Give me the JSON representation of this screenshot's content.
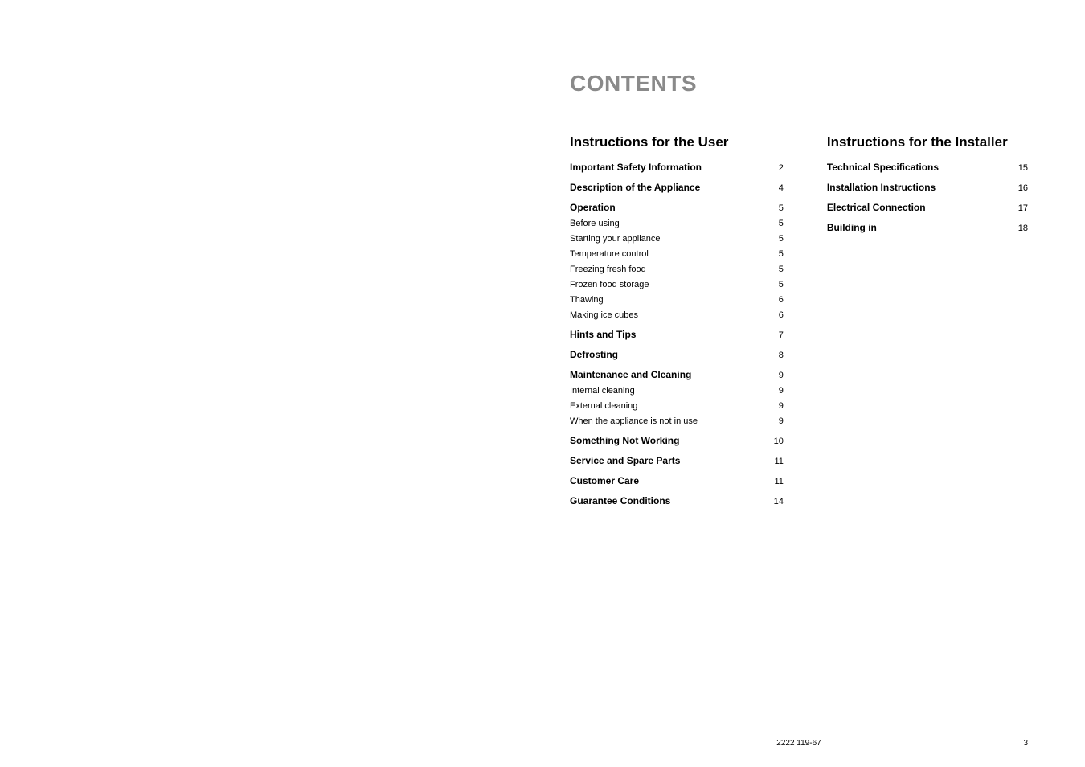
{
  "title": "CONTENTS",
  "user_section": {
    "heading": "Instructions for the User",
    "items": [
      {
        "label": "Important Safety Information",
        "page": "2",
        "bold": true,
        "gap": "large"
      },
      {
        "label": "Description of the Appliance",
        "page": "4",
        "bold": true,
        "gap": "large"
      },
      {
        "label": "Operation",
        "page": "5",
        "bold": true,
        "gap": "small"
      },
      {
        "label": "Before using",
        "page": "5",
        "bold": false,
        "gap": "small"
      },
      {
        "label": "Starting your appliance",
        "page": "5",
        "bold": false,
        "gap": "small"
      },
      {
        "label": "Temperature control",
        "page": "5",
        "bold": false,
        "gap": "small"
      },
      {
        "label": "Freezing fresh food",
        "page": "5",
        "bold": false,
        "gap": "small"
      },
      {
        "label": "Frozen food storage",
        "page": "5",
        "bold": false,
        "gap": "small"
      },
      {
        "label": "Thawing",
        "page": "6",
        "bold": false,
        "gap": "small"
      },
      {
        "label": "Making ice cubes",
        "page": "6",
        "bold": false,
        "gap": "large"
      },
      {
        "label": "Hints and Tips",
        "page": "7",
        "bold": true,
        "gap": "large"
      },
      {
        "label": "Defrosting",
        "page": "8",
        "bold": true,
        "gap": "large"
      },
      {
        "label": "Maintenance and Cleaning",
        "page": "9",
        "bold": true,
        "gap": "small"
      },
      {
        "label": "Internal cleaning",
        "page": "9",
        "bold": false,
        "gap": "small"
      },
      {
        "label": "External cleaning",
        "page": "9",
        "bold": false,
        "gap": "small"
      },
      {
        "label": "When the appliance is not in use",
        "page": "9",
        "bold": false,
        "gap": "large"
      },
      {
        "label": "Something Not Working",
        "page": "10",
        "bold": true,
        "gap": "large"
      },
      {
        "label": "Service and Spare Parts",
        "page": "11",
        "bold": true,
        "gap": "large"
      },
      {
        "label": "Customer Care",
        "page": "11",
        "bold": true,
        "gap": "large"
      },
      {
        "label": "Guarantee Conditions",
        "page": "14",
        "bold": true,
        "gap": "large"
      }
    ]
  },
  "installer_section": {
    "heading": "Instructions for the Installer",
    "items": [
      {
        "label": "Technical Specifications",
        "page": "15",
        "bold": true,
        "gap": "large"
      },
      {
        "label": "Installation Instructions",
        "page": "16",
        "bold": true,
        "gap": "large"
      },
      {
        "label": "Electrical Connection",
        "page": "17",
        "bold": true,
        "gap": "large"
      },
      {
        "label": "Building in",
        "page": "18",
        "bold": true,
        "gap": "large"
      }
    ]
  },
  "footer": {
    "code": "2222 119-67",
    "pagenum": "3"
  },
  "styles": {
    "title_color": "#8a8a8a",
    "text_color": "#000000",
    "background_color": "#ffffff",
    "title_fontsize": 28,
    "section_heading_fontsize": 17,
    "bold_item_fontsize": 12,
    "regular_item_fontsize": 11,
    "page_fontsize": 11,
    "footer_fontsize": 10
  }
}
